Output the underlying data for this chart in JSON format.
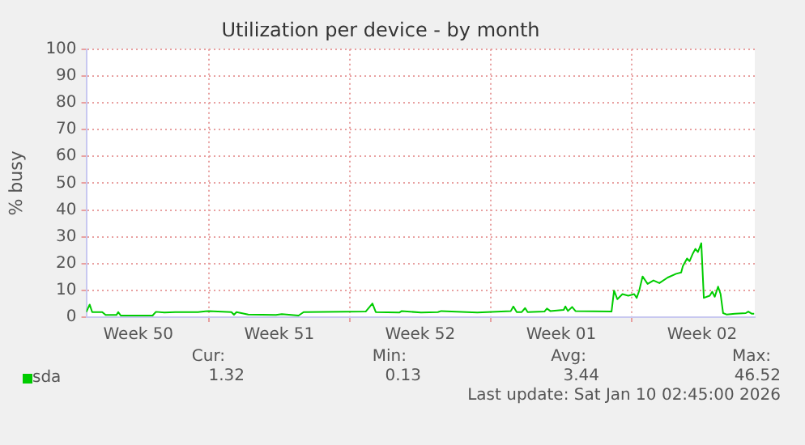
{
  "chart_data": {
    "type": "line",
    "title": "Utilization per device - by month",
    "ylabel": "% busy",
    "xlim": [
      "2025-12-07T22:00",
      "2026-01-10T02:45"
    ],
    "xticks": [
      {
        "value": "2025-12-10T12:00",
        "label": "Week 50"
      },
      {
        "value": "2025-12-14",
        "label": null
      },
      {
        "value": "2025-12-17T12:00",
        "label": "Week 51"
      },
      {
        "value": "2025-12-21",
        "label": null
      },
      {
        "value": "2025-12-24T12:00",
        "label": "Week 52"
      },
      {
        "value": "2025-12-28",
        "label": null
      },
      {
        "value": "2025-12-31T12:00",
        "label": "Week 01"
      },
      {
        "value": "2026-01-04",
        "label": null
      },
      {
        "value": "2026-01-07T12:00",
        "label": "Week 02"
      }
    ],
    "ylim": [
      0,
      100
    ],
    "yticks": [
      0,
      10,
      20,
      30,
      40,
      50,
      60,
      70,
      80,
      90,
      100
    ],
    "grid": true,
    "legend": "bottom",
    "annotations": [
      "Cur:",
      "Min:",
      "Avg:",
      "Max:",
      "1.32",
      "0.13",
      "3.44",
      "46.52",
      "Last update: Sat Jan 10 02:45:00 2026"
    ],
    "series": [
      {
        "name": "sda",
        "color": "#00cc00",
        "x": [
          "2025-12-07T22:00",
          "2025-12-08T02:00",
          "2025-12-08T05:00",
          "2025-12-08T17:00",
          "2025-12-08T21:00",
          "2025-12-09T10:00",
          "2025-12-09T12:00",
          "2025-12-09T15:00",
          "2025-12-11T05:00",
          "2025-12-11T09:00",
          "2025-12-11T19:00",
          "2025-12-12T08:00",
          "2025-12-13T11:00",
          "2025-12-14T00:00",
          "2025-12-15T03:00",
          "2025-12-15T06:00",
          "2025-12-15T09:00",
          "2025-12-15T23:00",
          "2025-12-17T08:00",
          "2025-12-17T15:00",
          "2025-12-18T11:00",
          "2025-12-18T17:00",
          "2025-12-21T19:00",
          "2025-12-22T03:00",
          "2025-12-22T07:00",
          "2025-12-23T11:00",
          "2025-12-23T14:00",
          "2025-12-24T13:00",
          "2025-12-25T09:00",
          "2025-12-25T13:00",
          "2025-12-27T08:00",
          "2025-12-29T00:00",
          "2025-12-29T03:00",
          "2025-12-29T07:00",
          "2025-12-29T13:00",
          "2025-12-29T17:00",
          "2025-12-29T20:00",
          "2025-12-30T16:00",
          "2025-12-30T19:00",
          "2025-12-30T23:00",
          "2025-12-31T15:00",
          "2025-12-31T17:00",
          "2025-12-31T20:00",
          "2026-01-01T01:00",
          "2026-01-01T05:00",
          "2026-01-03T00:00",
          "2026-01-03T03:00",
          "2026-01-03T07:00",
          "2026-01-03T13:00",
          "2026-01-03T20:00",
          "2026-01-04T03:00",
          "2026-01-04T06:00",
          "2026-01-04T09:00",
          "2026-01-04T13:00",
          "2026-01-04T19:00",
          "2026-01-05T02:00",
          "2026-01-05T09:00",
          "2026-01-05T19:00",
          "2026-01-06T05:00",
          "2026-01-06T11:00",
          "2026-01-06T13:00",
          "2026-01-06T18:00",
          "2026-01-06T21:00",
          "2026-01-07T01:00",
          "2026-01-07T04:00",
          "2026-01-07T07:00",
          "2026-01-07T11:00",
          "2026-01-07T14:00",
          "2026-01-07T21:00",
          "2026-01-08T00:00",
          "2026-01-08T03:00",
          "2026-01-08T07:00",
          "2026-01-08T10:00",
          "2026-01-08T13:00",
          "2026-01-08T17:00",
          "2026-01-09T03:00",
          "2026-01-09T16:00",
          "2026-01-09T19:00",
          "2026-01-09T23:00",
          "2026-01-10T02:00"
        ],
        "values": [
          1.9,
          4.7,
          1.9,
          1.9,
          0.8,
          0.8,
          1.9,
          0.6,
          0.6,
          2.0,
          1.7,
          1.9,
          1.9,
          2.3,
          1.9,
          0.9,
          1.9,
          1.0,
          0.8,
          1.1,
          0.6,
          1.9,
          2.1,
          5.1,
          1.9,
          1.7,
          2.3,
          1.7,
          1.9,
          2.3,
          1.7,
          2.3,
          4.0,
          1.9,
          1.9,
          3.4,
          1.9,
          2.1,
          3.2,
          2.3,
          2.7,
          4.0,
          2.3,
          3.8,
          2.3,
          2.1,
          9.9,
          6.7,
          8.6,
          8.0,
          8.6,
          7.2,
          9.9,
          15.2,
          12.4,
          13.7,
          12.7,
          14.8,
          16.2,
          16.7,
          19.0,
          21.9,
          20.9,
          23.8,
          25.5,
          24.3,
          27.6,
          7.2,
          8.0,
          9.5,
          7.6,
          11.4,
          8.6,
          1.5,
          1.0,
          1.3,
          1.5,
          2.1,
          1.3,
          1.3
        ]
      }
    ]
  }
}
